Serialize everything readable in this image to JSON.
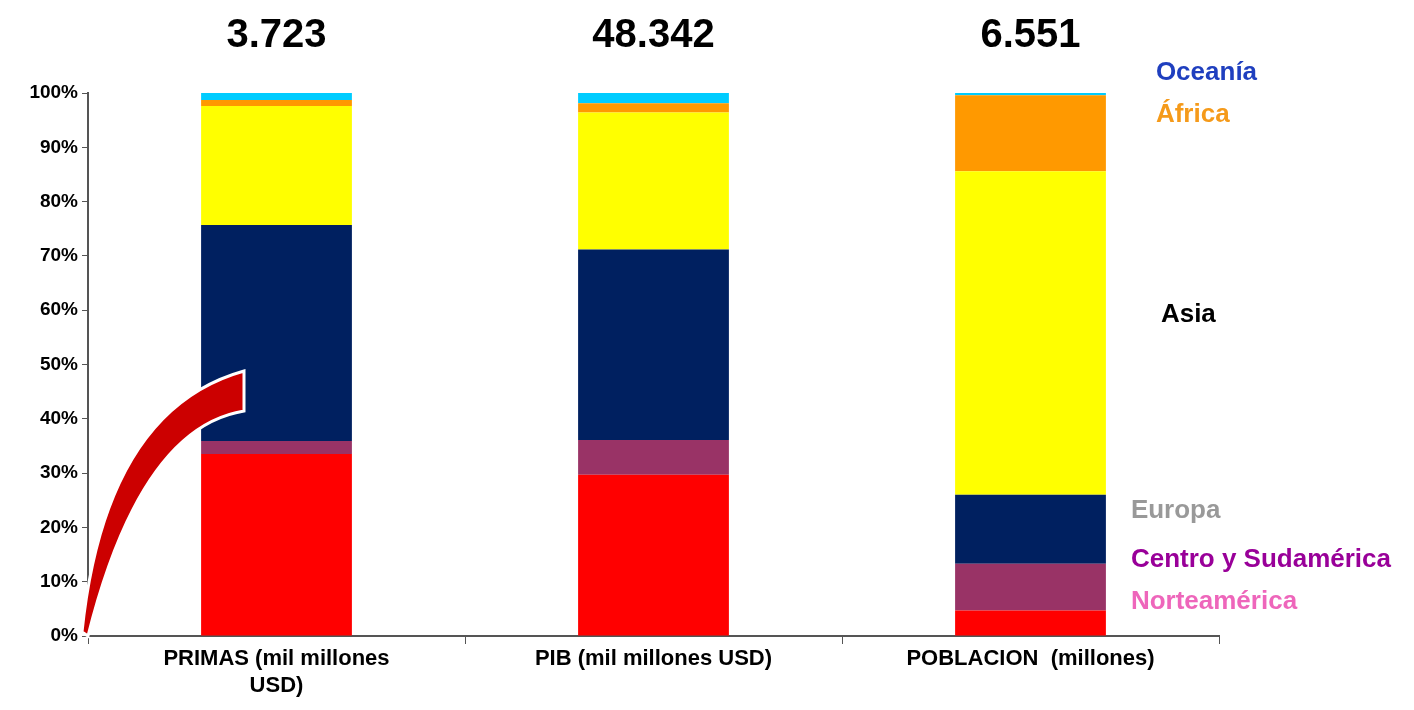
{
  "chart_data": {
    "type": "bar",
    "stacked": true,
    "categories": [
      "PRIMAS (mil millones USD)",
      "PIB (mil millones USD)",
      "POBLACION  (millones)"
    ],
    "series": [
      {
        "name": "Norteamérica",
        "color": "#ff0000",
        "values": [
          33.5,
          29.7,
          4.7
        ]
      },
      {
        "name": "Centro y Sudamérica",
        "color": "#993366",
        "values": [
          2.4,
          6.4,
          8.6
        ]
      },
      {
        "name": "Europa",
        "color": "#002060",
        "values": [
          39.8,
          35.1,
          12.7
        ]
      },
      {
        "name": "Asia",
        "color": "#ffff00",
        "values": [
          21.9,
          25.2,
          59.6
        ]
      },
      {
        "name": "África",
        "color": "#ff9900",
        "values": [
          1.1,
          1.7,
          14.0
        ]
      },
      {
        "name": "Oceanía",
        "color": "#00ccff",
        "values": [
          1.3,
          1.9,
          0.4
        ]
      }
    ],
    "annotations": [
      "3.723",
      "48.342",
      "6.551"
    ],
    "ylim": [
      0,
      100
    ],
    "yticks": [
      {
        "value": 0,
        "label": "0%"
      },
      {
        "value": 10,
        "label": "10%"
      },
      {
        "value": 20,
        "label": "20%"
      },
      {
        "value": 30,
        "label": "30%"
      },
      {
        "value": 40,
        "label": "40%"
      },
      {
        "value": 50,
        "label": "50%"
      },
      {
        "value": 60,
        "label": "60%"
      },
      {
        "value": 70,
        "label": "70%"
      },
      {
        "value": 80,
        "label": "80%"
      },
      {
        "value": 90,
        "label": "90%"
      },
      {
        "value": 100,
        "label": "100%"
      }
    ],
    "grid": false,
    "legend": false
  }
}
